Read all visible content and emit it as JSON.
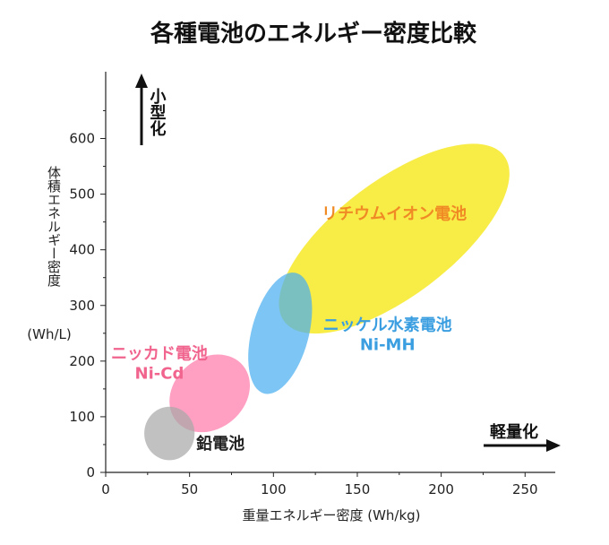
{
  "chart_data": {
    "type": "bubble-region",
    "title": "各種電池のエネルギー密度比較",
    "xlabel": "重量エネルギー密度 (Wh/kg)",
    "ylabel": "体積エネルギー密度",
    "ylabel_unit": "(Wh/L)",
    "xlim": [
      0,
      268
    ],
    "ylim": [
      0,
      720
    ],
    "xticks": [
      0,
      50,
      100,
      150,
      200,
      250
    ],
    "yticks": [
      0,
      100,
      200,
      300,
      400,
      500,
      600
    ],
    "up_direction_label": "小型化",
    "right_direction_label": "軽量化",
    "regions": [
      {
        "name": "リチウムイオン電池",
        "label_lines": [
          "リチウムイオン電池"
        ],
        "center": [
          172,
          420
        ],
        "rx": 82,
        "ry": 104,
        "rotation_deg": -37,
        "color": "#f5e400",
        "label_color": "#f08a24",
        "label_at": [
          172,
          455
        ]
      },
      {
        "name": "ニッケル水素電池",
        "label_lines": [
          "ニッケル水素電池",
          "Ni-MH"
        ],
        "center": [
          104,
          250
        ],
        "rx": 17,
        "ry": 112,
        "rotation_deg": 15,
        "color": "#4aaef0",
        "label_color": "#3a9ee0",
        "label_at": [
          168,
          255
        ]
      },
      {
        "name": "ニッカド電池",
        "label_lines": [
          "ニッカド電池",
          "Ni-Cd"
        ],
        "center": [
          62,
          142
        ],
        "rx": 21,
        "ry": 78,
        "rotation_deg": 50,
        "color": "#ff7aaa",
        "label_color": "#f0648e",
        "label_at": [
          32,
          204
        ]
      },
      {
        "name": "鉛電池",
        "label_lines": [
          "鉛電池"
        ],
        "center": [
          38,
          70
        ],
        "rx": 15,
        "ry": 48,
        "rotation_deg": 0,
        "color": "#a9a9a9",
        "label_color": "#222222",
        "label_at": [
          54,
          42
        ]
      }
    ]
  }
}
